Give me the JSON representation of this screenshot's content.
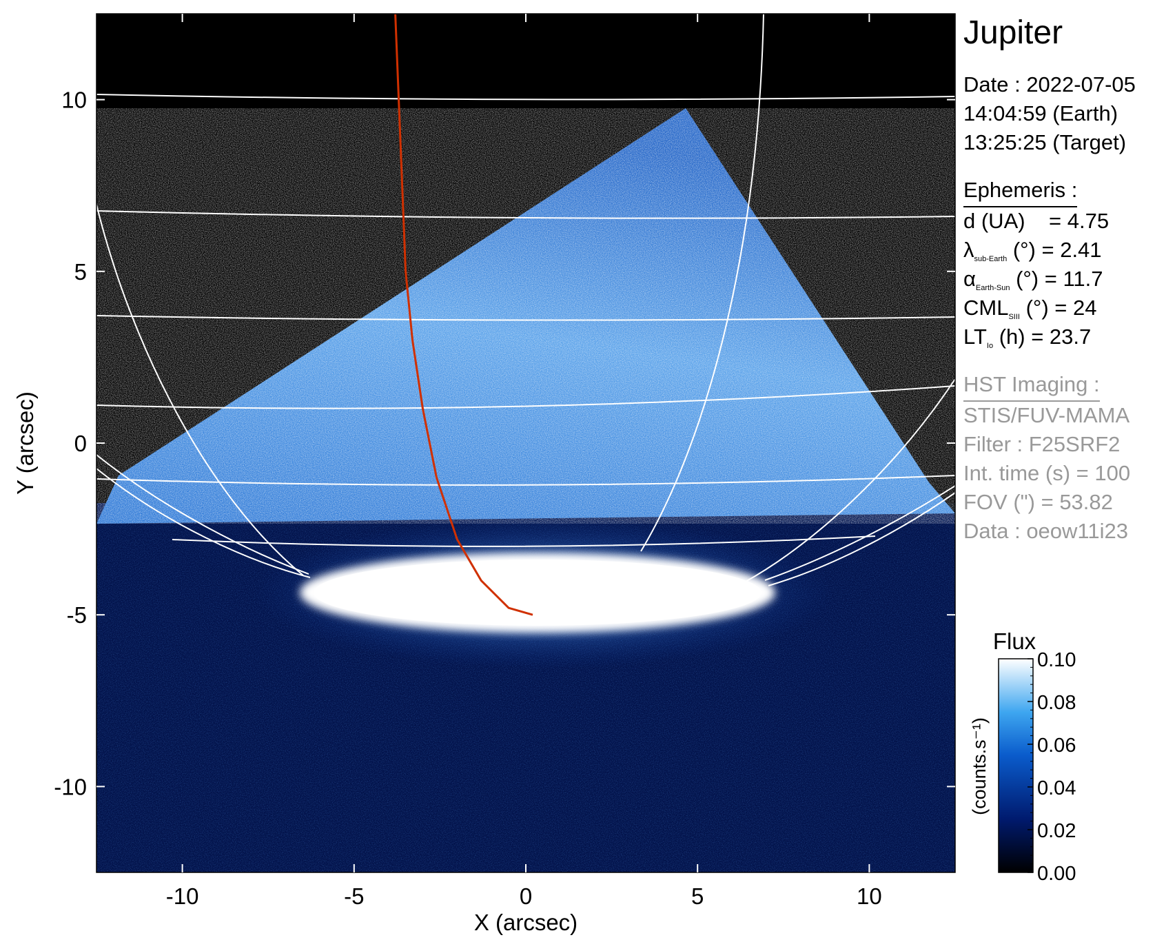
{
  "colors": {
    "background": "#000000",
    "grid": "#ffffff",
    "io_footprint": "#d03000",
    "muted_text": "#999999"
  },
  "chart_data": {
    "type": "heatmap",
    "xlabel": "X (arcsec)",
    "ylabel": "Y (arcsec)",
    "xlim": [
      -12.5,
      12.5
    ],
    "ylim": [
      -12.5,
      12.5
    ],
    "xticks": [
      -10,
      -5,
      0,
      5,
      10
    ],
    "yticks": [
      -10,
      -5,
      0,
      5,
      10
    ],
    "xtick_labels": [
      "-10",
      "-5",
      "0",
      "5",
      "10"
    ],
    "ytick_labels": [
      "-10",
      "-5",
      "0",
      "5",
      "10"
    ],
    "colormap": "black-blue-white",
    "io_footprint_line": {
      "color": "#d03000",
      "x": [
        -3.8,
        -3.7,
        -3.6,
        -3.5,
        -3.3,
        -3.0,
        -2.6,
        -2.0,
        -1.3,
        -0.5,
        0.2
      ],
      "y": [
        12.5,
        10.0,
        7.5,
        5.0,
        3.0,
        1.0,
        -1.0,
        -2.8,
        -4.0,
        -4.8,
        -5.0
      ]
    },
    "colorbar": {
      "title": "Flux",
      "label": "(counts.s⁻¹)",
      "range": [
        0.0,
        0.1
      ],
      "ticks": [
        "0.10",
        "0.08",
        "0.06",
        "0.04",
        "0.02",
        "0.00"
      ]
    }
  },
  "info": {
    "target": "Jupiter",
    "date_line": "Date : 2022-07-05",
    "earth_time": "14:04:59 (Earth)",
    "target_time": "13:25:25 (Target)",
    "ephemeris_heading": "Ephemeris :",
    "distance": {
      "label": "d (UA)",
      "value": "= 4.75"
    },
    "sub_earth_lon": {
      "symbol": "λ",
      "sub": "sub-Earth",
      "rest": "(°) = 2.41"
    },
    "phase_angle": {
      "symbol": "α",
      "sub": "Earth-Sun",
      "rest": "(°) = 11.7"
    },
    "cml": {
      "symbol": "CML",
      "sub": "SIII",
      "rest": "(°) = 24"
    },
    "local_time": {
      "symbol": "LT",
      "sub": "Io",
      "rest": "(h) = 23.7"
    },
    "hst_heading": "HST Imaging :",
    "instrument": "STIS/FUV-MAMA",
    "filter": "Filter : F25SRF2",
    "int_time": "Int. time (s) = 100",
    "fov": "FOV (\") = 53.82",
    "dataset": "Data : oeow11i23"
  }
}
